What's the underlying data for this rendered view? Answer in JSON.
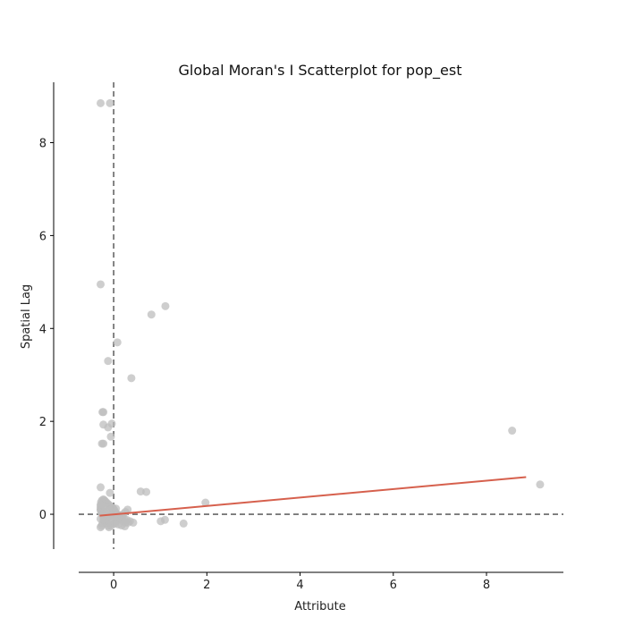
{
  "chart_data": {
    "type": "scatter",
    "title": "Global Moran's I Scatterplot for pop_est",
    "xlabel": "Attribute",
    "ylabel": "Spatial Lag",
    "xlim": [
      -0.75,
      9.65
    ],
    "ylim": [
      -0.75,
      9.3
    ],
    "xticks": [
      0,
      2,
      4,
      6,
      8
    ],
    "yticks": [
      0,
      2,
      4,
      6,
      8
    ],
    "reference_lines": {
      "x": 0,
      "y": 0,
      "style": "dashed"
    },
    "regression_line": {
      "x": [
        -0.3,
        8.85
      ],
      "y": [
        -0.03,
        0.8
      ],
      "color": "#d6604d"
    },
    "point_color": "#bdbdbd",
    "grid": false,
    "points": {
      "x": [
        -0.28,
        -0.08,
        -0.28,
        0.08,
        0.81,
        1.11,
        -0.12,
        0.38,
        -0.24,
        -0.22,
        -0.04,
        -0.22,
        -0.12,
        -0.06,
        -0.25,
        -0.22,
        -0.28,
        8.55,
        9.15,
        1.97,
        0.58,
        0.7,
        -0.08,
        1.1,
        1.01,
        1.5,
        0.42,
        0.35,
        0.28,
        0.22,
        0.18,
        0.15,
        0.12,
        0.08,
        0.05,
        0.03,
        0.02,
        0.0,
        -0.02,
        -0.05,
        -0.08,
        -0.1,
        -0.12,
        -0.15,
        -0.18,
        -0.2,
        -0.22,
        -0.25,
        -0.27,
        -0.28,
        -0.28,
        -0.28,
        -0.27,
        -0.25,
        -0.22,
        -0.2,
        -0.18,
        -0.15,
        -0.12,
        -0.1,
        -0.05,
        0.0,
        0.05,
        0.1,
        0.15,
        0.2,
        0.25,
        0.3,
        -0.28,
        -0.26,
        -0.24,
        -0.2,
        -0.15,
        -0.1,
        -0.05,
        0.02,
        0.08,
        0.12,
        0.18,
        0.25,
        -0.28,
        -0.25,
        -0.2,
        -0.15,
        -0.1,
        -0.05,
        0.0,
        0.05,
        0.1,
        -0.28,
        -0.22,
        -0.16,
        -0.1,
        -0.04,
        0.03,
        0.1,
        0.17,
        0.24,
        0.31,
        0.05,
        -0.02,
        -0.12,
        -0.2,
        -0.27
      ],
      "y": [
        8.85,
        8.85,
        4.95,
        3.7,
        4.3,
        4.48,
        3.3,
        2.93,
        2.2,
        2.2,
        1.95,
        1.93,
        1.87,
        1.67,
        1.52,
        1.52,
        0.58,
        1.8,
        0.64,
        0.25,
        0.49,
        0.48,
        0.46,
        -0.12,
        -0.15,
        -0.2,
        -0.18,
        -0.15,
        -0.12,
        -0.1,
        -0.08,
        -0.05,
        -0.02,
        0.0,
        0.02,
        0.05,
        0.08,
        0.1,
        0.12,
        0.15,
        0.18,
        0.2,
        0.22,
        0.25,
        0.28,
        0.3,
        0.32,
        0.3,
        0.26,
        0.2,
        0.15,
        0.1,
        0.05,
        0.0,
        -0.05,
        -0.1,
        -0.15,
        -0.2,
        -0.25,
        -0.28,
        -0.25,
        -0.2,
        -0.15,
        -0.1,
        -0.05,
        0.0,
        0.05,
        0.1,
        -0.28,
        -0.25,
        -0.2,
        -0.15,
        -0.1,
        -0.05,
        0.0,
        -0.02,
        -0.06,
        -0.1,
        -0.14,
        -0.18,
        0.1,
        0.08,
        0.06,
        0.04,
        0.02,
        -0.02,
        -0.04,
        -0.06,
        -0.08,
        -0.1,
        -0.12,
        -0.14,
        -0.16,
        -0.18,
        -0.2,
        -0.22,
        -0.24,
        -0.26,
        -0.18,
        0.12,
        0.14,
        0.16,
        0.18,
        0.2
      ]
    }
  }
}
